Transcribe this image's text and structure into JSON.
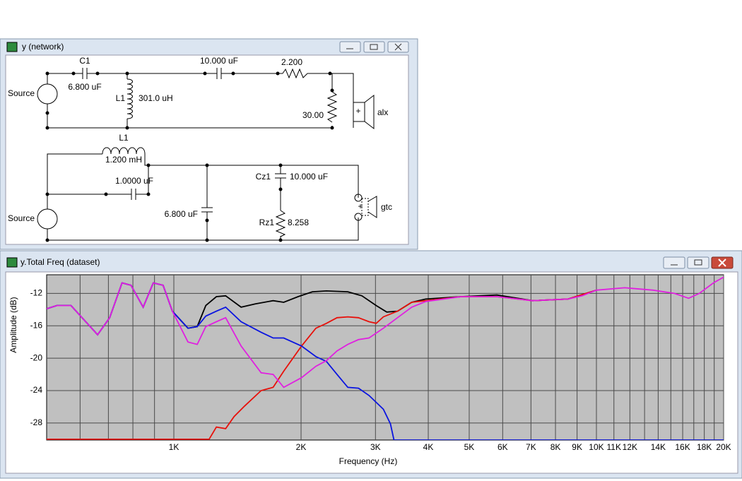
{
  "network_window": {
    "title": "y (network)",
    "labels": [
      "C1",
      "6.800 uF",
      "L1",
      "301.0 uH",
      "10.000 uF",
      "2.200",
      "30.00",
      "alx",
      "Source",
      "L1",
      "1.200 mH",
      "1.0000 uF",
      "6.800 uF",
      "Cz1",
      "10.000 uF",
      "Rz1",
      "8.258",
      "gtc",
      "Source"
    ]
  },
  "chart_window": {
    "title": "y.Total Freq (dataset)"
  },
  "chart_data": {
    "type": "line",
    "x_label": "Frequency (Hz)",
    "y_label": "Amplitude (dB)",
    "xscale": "log",
    "xlim": [
      500,
      20000
    ],
    "ylim": [
      -30.1,
      -9.7
    ],
    "xticks": [
      {
        "value": 1000,
        "label": "1K"
      },
      {
        "value": 2000,
        "label": "2K"
      },
      {
        "value": 3000,
        "label": "3K"
      },
      {
        "value": 4000,
        "label": "4K"
      },
      {
        "value": 5000,
        "label": "5K"
      },
      {
        "value": 6000,
        "label": "6K"
      },
      {
        "value": 7000,
        "label": "7K"
      },
      {
        "value": 8000,
        "label": "8K"
      },
      {
        "value": 9000,
        "label": "9K"
      },
      {
        "value": 10000,
        "label": "10K"
      },
      {
        "value": 11000,
        "label": "11K"
      },
      {
        "value": 12000,
        "label": "12K"
      },
      {
        "value": 14000,
        "label": "14K"
      },
      {
        "value": 16000,
        "label": "16K"
      },
      {
        "value": 18000,
        "label": "18K"
      },
      {
        "value": 20000,
        "label": "20K"
      }
    ],
    "x_minor_grid": [
      600,
      700,
      800,
      900,
      13000,
      15000,
      17000,
      19000
    ],
    "yticks": [
      -12,
      -16,
      -20,
      -24,
      -28
    ],
    "grid": true,
    "background": "#c0c0c0",
    "series": [
      {
        "color": "#000000",
        "x": [
          500,
          528,
          571,
          660,
          705,
          754,
          792,
          846,
          894,
          943,
          992,
          1080,
          1136,
          1190,
          1261,
          1326,
          1443,
          1559,
          1718,
          1820,
          1968,
          2127,
          2296,
          2580,
          2786,
          3012,
          3190,
          3383,
          3655,
          3945,
          4789,
          5815,
          7057,
          8565,
          9995
        ],
        "values": [
          -13.9,
          -13.5,
          -13.5,
          -17.1,
          -15.0,
          -10.7,
          -11.0,
          -13.7,
          -10.7,
          -11.0,
          -14.2,
          -16.3,
          -16.1,
          -13.5,
          -12.4,
          -12.3,
          -13.7,
          -13.3,
          -12.9,
          -13.1,
          -12.4,
          -11.8,
          -11.7,
          -11.8,
          -12.3,
          -13.5,
          -14.3,
          -14.2,
          -13.1,
          -12.7,
          -12.4,
          -12.2,
          -12.9,
          -12.7,
          -11.6
        ]
      },
      {
        "color": "#e8100a",
        "x": [
          500,
          1212,
          1261,
          1326,
          1389,
          1471,
          1609,
          1718,
          1820,
          2005,
          2168,
          2296,
          2433,
          2580,
          2735,
          2897,
          3012,
          3132,
          3383,
          3655,
          3945,
          4789,
          5815,
          7057,
          8565,
          9995
        ],
        "values": [
          -30.0,
          -30.0,
          -28.5,
          -28.7,
          -27.2,
          -25.9,
          -24.0,
          -23.6,
          -21.6,
          -18.5,
          -16.3,
          -15.7,
          -15.0,
          -14.9,
          -15.0,
          -15.5,
          -15.7,
          -14.9,
          -14.2,
          -13.1,
          -12.9,
          -12.4,
          -12.4,
          -12.9,
          -12.7,
          -11.6
        ]
      },
      {
        "color": "#0a14e0",
        "x": [
          500,
          528,
          571,
          660,
          705,
          754,
          792,
          846,
          894,
          943,
          992,
          1080,
          1136,
          1190,
          1261,
          1326,
          1443,
          1609,
          1718,
          1820,
          2005,
          2168,
          2296,
          2433,
          2580,
          2735,
          2897,
          3132,
          3255,
          3318,
          20000
        ],
        "values": [
          -13.9,
          -13.5,
          -13.5,
          -17.1,
          -15.0,
          -10.7,
          -11.0,
          -13.7,
          -10.7,
          -11.0,
          -14.2,
          -16.3,
          -16.1,
          -14.8,
          -14.2,
          -13.7,
          -15.5,
          -16.8,
          -17.5,
          -17.5,
          -18.5,
          -19.8,
          -20.4,
          -22.0,
          -23.6,
          -23.7,
          -24.6,
          -26.3,
          -28.1,
          -30.1,
          -30.1
        ]
      },
      {
        "color": "#e020e0",
        "x": [
          500,
          528,
          571,
          660,
          705,
          754,
          792,
          846,
          894,
          943,
          992,
          1080,
          1136,
          1190,
          1261,
          1326,
          1443,
          1609,
          1718,
          1820,
          2005,
          2168,
          2296,
          2433,
          2580,
          2735,
          2897,
          3132,
          3383,
          3655,
          3945,
          4789,
          5815,
          7057,
          8565,
          9247,
          9995,
          11670,
          13620,
          15300,
          16520,
          17520,
          18920,
          20000
        ],
        "values": [
          -13.9,
          -13.5,
          -13.5,
          -17.1,
          -15.0,
          -10.7,
          -11.0,
          -13.7,
          -10.7,
          -11.0,
          -14.2,
          -18.0,
          -18.3,
          -16.1,
          -15.5,
          -15.0,
          -18.5,
          -21.8,
          -22.0,
          -23.6,
          -22.4,
          -21.0,
          -20.3,
          -19.1,
          -18.3,
          -17.7,
          -17.5,
          -16.3,
          -15.0,
          -13.7,
          -13.0,
          -12.4,
          -12.4,
          -12.9,
          -12.7,
          -12.3,
          -11.6,
          -11.3,
          -11.6,
          -12.0,
          -12.6,
          -12.0,
          -10.7,
          -10.0
        ]
      }
    ]
  }
}
